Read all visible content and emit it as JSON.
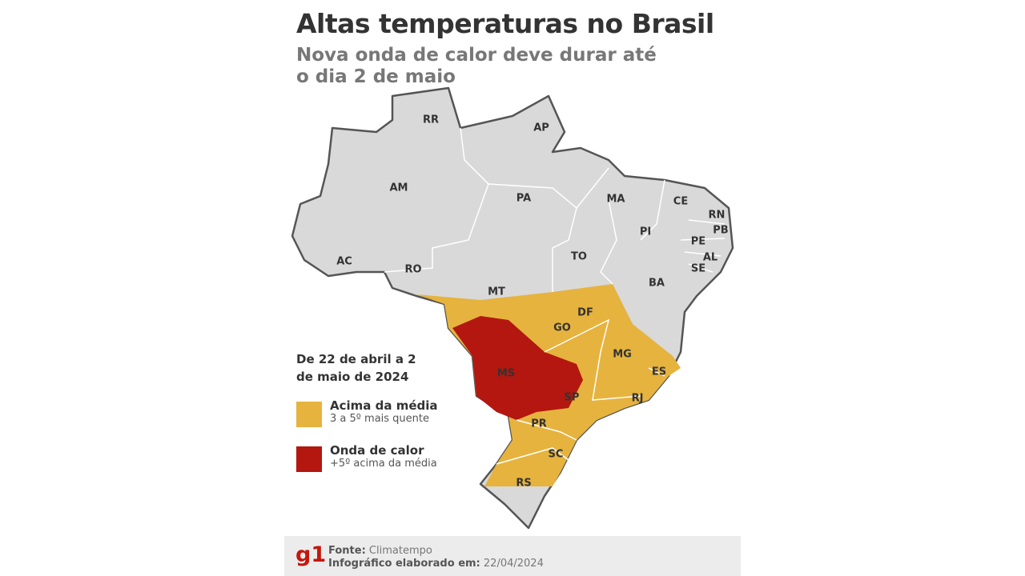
{
  "header": {
    "title": "Altas temperaturas no Brasil",
    "subtitle": "Nova onda de calor deve durar até o dia 2 de maio"
  },
  "states": [
    {
      "label": "RR"
    },
    {
      "label": "AP"
    },
    {
      "label": "AM"
    },
    {
      "label": "PA"
    },
    {
      "label": "MA"
    },
    {
      "label": "CE"
    },
    {
      "label": "RN"
    },
    {
      "label": "PB"
    },
    {
      "label": "PI"
    },
    {
      "label": "PE"
    },
    {
      "label": "AL"
    },
    {
      "label": "SE"
    },
    {
      "label": "AC"
    },
    {
      "label": "RO"
    },
    {
      "label": "TO"
    },
    {
      "label": "BA"
    },
    {
      "label": "MT"
    },
    {
      "label": "DF"
    },
    {
      "label": "GO"
    },
    {
      "label": "MG"
    },
    {
      "label": "ES"
    },
    {
      "label": "MS"
    },
    {
      "label": "SP"
    },
    {
      "label": "RJ"
    },
    {
      "label": "PR"
    },
    {
      "label": "SC"
    },
    {
      "label": "RS"
    }
  ],
  "legend": {
    "period": "De 22 de abril a 2 de maio de 2024",
    "items": [
      {
        "label": "Acima da média",
        "description": "3 a 5º mais quente",
        "color": "#e6b33e"
      },
      {
        "label": "Onda de calor",
        "description": "+5º acima da média",
        "color": "#b3170f"
      }
    ]
  },
  "footer": {
    "logo": "g1",
    "source_label": "Fonte:",
    "source": "Climatempo",
    "date_label": "Infográfico elaborado em:",
    "date": "22/04/2024"
  }
}
